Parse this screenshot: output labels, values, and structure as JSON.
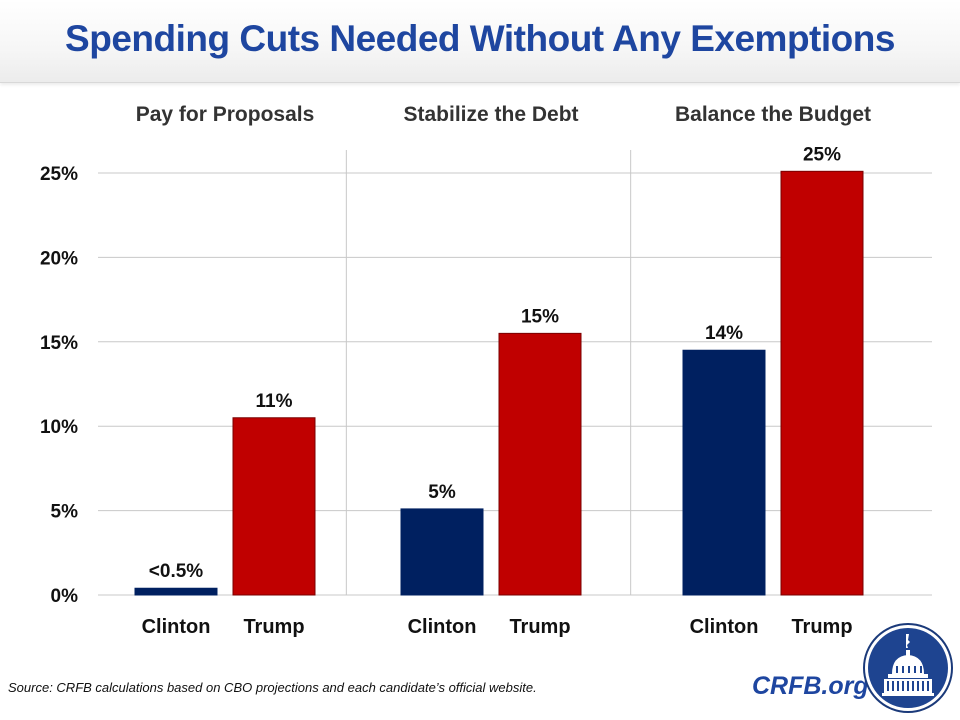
{
  "chart_data": {
    "type": "bar",
    "title": "Spending Cuts Needed Without Any Exemptions",
    "groups": [
      "Pay for Proposals",
      "Stabilize the Debt",
      "Balance the Budget"
    ],
    "categories": [
      "Clinton",
      "Trump"
    ],
    "series": [
      {
        "name": "Clinton",
        "color": "#002060",
        "values": [
          0.4,
          5.1,
          14.5
        ],
        "labels": [
          "<0.5%",
          "5%",
          "14%"
        ]
      },
      {
        "name": "Trump",
        "color": "#c00000",
        "values": [
          10.5,
          15.5,
          25.1
        ],
        "labels": [
          "11%",
          "15%",
          "25%"
        ]
      }
    ],
    "xlabel": "",
    "ylabel": "",
    "ylim": [
      0,
      25
    ],
    "yticks": [
      0,
      5,
      10,
      15,
      20,
      25
    ],
    "ytick_labels": [
      "0%",
      "5%",
      "10%",
      "15%",
      "20%",
      "25%"
    ],
    "grid": true,
    "legend": "none"
  },
  "footer": {
    "source": "Source: CRFB calculations based on CBO projections and each candidate’s official website.",
    "site": "CRFB.org"
  },
  "logo": {
    "icon": "capitol-dome-icon"
  }
}
